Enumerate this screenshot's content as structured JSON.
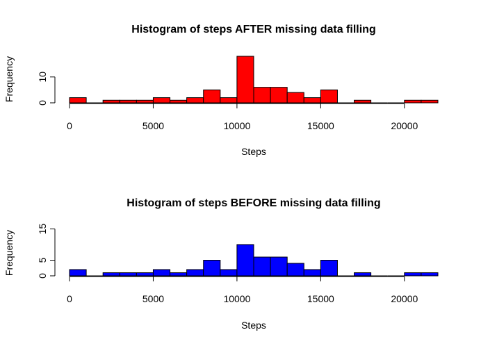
{
  "chart_data": [
    {
      "type": "bar",
      "title": "Histogram of steps AFTER missing data filling",
      "xlabel": "Steps",
      "ylabel": "Frequency",
      "color": "#ff0000",
      "bin_width": 1000,
      "bin_starts": [
        0,
        1000,
        2000,
        3000,
        4000,
        5000,
        6000,
        7000,
        8000,
        9000,
        10000,
        11000,
        12000,
        13000,
        14000,
        15000,
        16000,
        17000,
        18000,
        19000,
        20000,
        21000
      ],
      "values": [
        2,
        0,
        1,
        1,
        1,
        2,
        1,
        2,
        5,
        2,
        18,
        6,
        6,
        4,
        2,
        5,
        0,
        1,
        0,
        0,
        1,
        1
      ],
      "xlim": [
        0,
        22000
      ],
      "ylim": [
        0,
        18
      ],
      "xticks": [
        0,
        5000,
        10000,
        15000,
        20000
      ],
      "xtick_labels": [
        "0",
        "5000",
        "10000",
        "15000",
        "20000"
      ],
      "yticks": [
        0,
        10
      ],
      "ytick_labels": [
        "0",
        "10"
      ],
      "grid": false
    },
    {
      "type": "bar",
      "title": "Histogram of steps BEFORE missing data filling",
      "xlabel": "Steps",
      "ylabel": "Frequency",
      "color": "#0000ff",
      "bin_width": 1000,
      "bin_starts": [
        0,
        1000,
        2000,
        3000,
        4000,
        5000,
        6000,
        7000,
        8000,
        9000,
        10000,
        11000,
        12000,
        13000,
        14000,
        15000,
        16000,
        17000,
        18000,
        19000,
        20000,
        21000
      ],
      "values": [
        2,
        0,
        1,
        1,
        1,
        2,
        1,
        2,
        5,
        2,
        10,
        6,
        6,
        4,
        2,
        5,
        0,
        1,
        0,
        0,
        1,
        1
      ],
      "xlim": [
        0,
        22000
      ],
      "ylim": [
        0,
        15
      ],
      "xticks": [
        0,
        5000,
        10000,
        15000,
        20000
      ],
      "xtick_labels": [
        "0",
        "5000",
        "10000",
        "15000",
        "20000"
      ],
      "yticks": [
        0,
        5,
        15
      ],
      "ytick_labels": [
        "0",
        "5",
        "15"
      ],
      "grid": false
    }
  ]
}
